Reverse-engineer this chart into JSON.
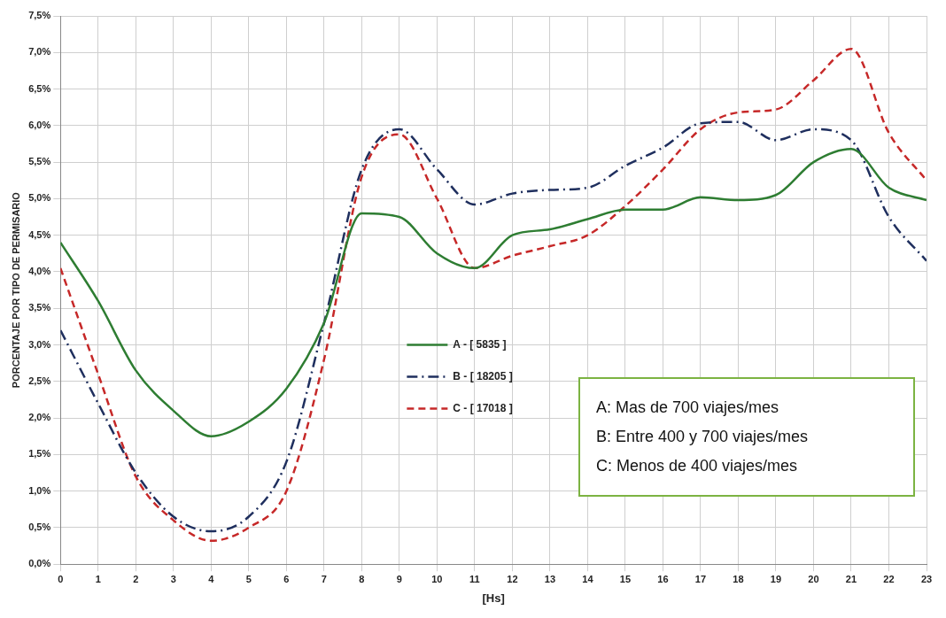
{
  "chart_data": {
    "type": "line",
    "xlabel": "[Hs]",
    "ylabel": "PORCENTAJE POR TIPO DE PERMISARIO",
    "x": [
      0,
      1,
      2,
      3,
      4,
      5,
      6,
      7,
      8,
      9,
      10,
      11,
      12,
      13,
      14,
      15,
      16,
      17,
      18,
      19,
      20,
      21,
      22,
      23
    ],
    "series": [
      {
        "name": "A - [ 5835 ]",
        "color": "#2e7d32",
        "line_style": "solid",
        "values": [
          4.4,
          3.6,
          2.65,
          2.1,
          1.75,
          1.95,
          2.4,
          3.3,
          4.8,
          4.75,
          4.25,
          4.05,
          4.5,
          4.58,
          4.72,
          4.85,
          4.85,
          5.02,
          4.98,
          5.05,
          5.5,
          5.68,
          5.15,
          4.98
        ]
      },
      {
        "name": "B - [ 18205 ]",
        "color": "#1f2f5e",
        "line_style": "dashdot",
        "values": [
          3.2,
          2.2,
          1.25,
          0.65,
          0.45,
          0.65,
          1.4,
          3.3,
          5.4,
          5.95,
          5.4,
          4.92,
          5.07,
          5.12,
          5.15,
          5.45,
          5.7,
          6.03,
          6.05,
          5.8,
          5.95,
          5.8,
          4.75,
          4.15
        ]
      },
      {
        "name": "C - [ 17018 ]",
        "color": "#c62828",
        "line_style": "dashed",
        "values": [
          4.05,
          2.6,
          1.2,
          0.6,
          0.32,
          0.5,
          1.0,
          2.8,
          5.3,
          5.88,
          5.0,
          4.05,
          4.22,
          4.35,
          4.5,
          4.9,
          5.4,
          5.95,
          6.18,
          6.22,
          6.62,
          7.05,
          5.9,
          5.25
        ]
      }
    ],
    "xlim": [
      0,
      23
    ],
    "xticks": [
      0,
      1,
      2,
      3,
      4,
      5,
      6,
      7,
      8,
      9,
      10,
      11,
      12,
      13,
      14,
      15,
      16,
      17,
      18,
      19,
      20,
      21,
      22,
      23
    ],
    "ylim": [
      0,
      7.5
    ],
    "yticks": [
      {
        "value": 0,
        "label": "0,0%"
      },
      {
        "value": 0.5,
        "label": "0,5%"
      },
      {
        "value": 1,
        "label": "1,0%"
      },
      {
        "value": 1.5,
        "label": "1,5%"
      },
      {
        "value": 2,
        "label": "2,0%"
      },
      {
        "value": 2.5,
        "label": "2,5%"
      },
      {
        "value": 3,
        "label": "3,0%"
      },
      {
        "value": 3.5,
        "label": "3,5%"
      },
      {
        "value": 4,
        "label": "4,0%"
      },
      {
        "value": 4.5,
        "label": "4,5%"
      },
      {
        "value": 5,
        "label": "5,0%"
      },
      {
        "value": 5.5,
        "label": "5,5%"
      },
      {
        "value": 6,
        "label": "6,0%"
      },
      {
        "value": 6.5,
        "label": "6,5%"
      },
      {
        "value": 7,
        "label": "7,0%"
      },
      {
        "value": 7.5,
        "label": "7,5%"
      }
    ],
    "grid": true,
    "legend": "center",
    "marker": "none",
    "annotations": [
      "A: Mas de 700 viajes/mes",
      "B: Entre 400 y 700 viajes/mes",
      "C: Menos de 400 viajes/mes"
    ]
  }
}
